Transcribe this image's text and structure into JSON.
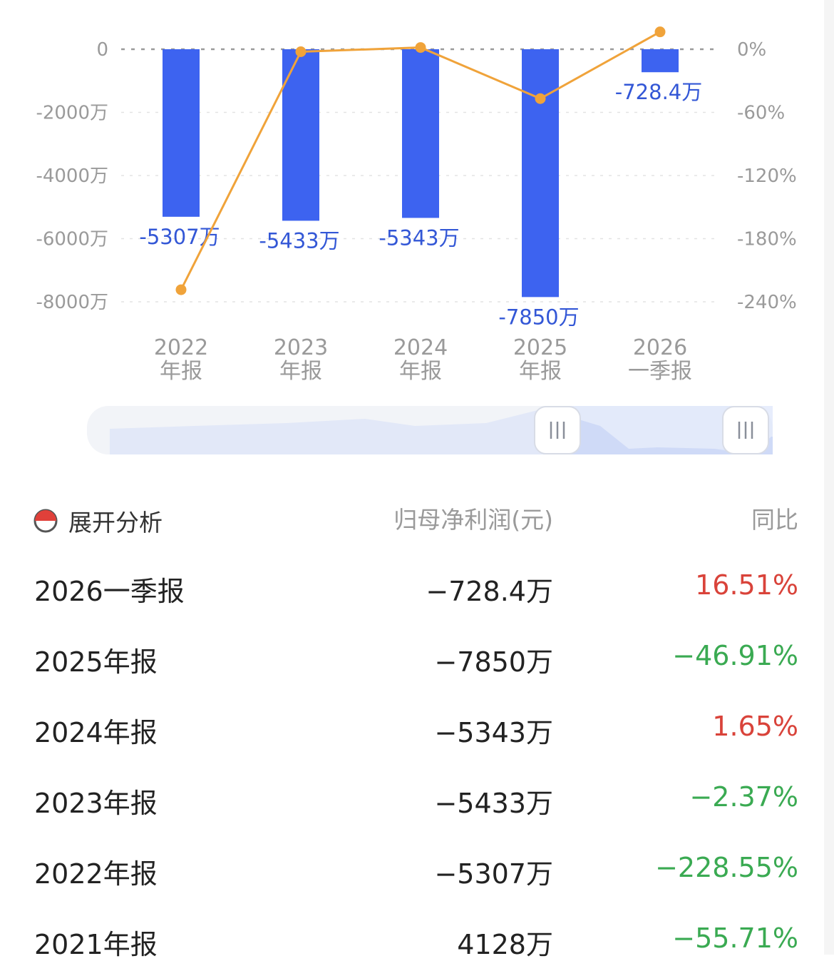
{
  "chart_data": {
    "type": "bar",
    "categories": [
      {
        "year": "2022",
        "period": "年报"
      },
      {
        "year": "2023",
        "period": "年报"
      },
      {
        "year": "2024",
        "period": "年报"
      },
      {
        "year": "2025",
        "period": "年报"
      },
      {
        "year": "2026",
        "period": "一季报"
      }
    ],
    "bar_values": [
      -5307,
      -5433,
      -5343,
      -7850,
      -728.4
    ],
    "bar_labels": [
      "-5307万",
      "-5433万",
      "-5343万",
      "-7850万",
      "-728.4万"
    ],
    "line_values": [
      -228.55,
      -2.37,
      1.65,
      -46.91,
      16.51
    ],
    "left_axis": {
      "ticks": [
        0,
        -2000,
        -4000,
        -6000,
        -8000
      ],
      "tick_labels": [
        "0",
        "-2000万",
        "-4000万",
        "-6000万",
        "-8000万"
      ],
      "range": [
        -8000,
        0
      ]
    },
    "right_axis": {
      "ticks": [
        0,
        -60,
        -120,
        -180,
        -240
      ],
      "tick_labels": [
        "0%",
        "-60%",
        "-120%",
        "-180%",
        "-240%"
      ],
      "range": [
        -240,
        0
      ]
    },
    "zero_line": "dashed",
    "colors": {
      "bar": "#3d63f0",
      "line": "#f0a33a",
      "label": "#3357d6"
    }
  },
  "table": {
    "expand_label": "展开分析",
    "col_value": "归母净利润(元)",
    "col_yoy": "同比",
    "rows": [
      {
        "period": "2026一季报",
        "value": "−728.4万",
        "yoy": "16.51%",
        "sign": "pos"
      },
      {
        "period": "2025年报",
        "value": "−7850万",
        "yoy": "−46.91%",
        "sign": "neg"
      },
      {
        "period": "2024年报",
        "value": "−5343万",
        "yoy": "1.65%",
        "sign": "pos"
      },
      {
        "period": "2023年报",
        "value": "−5433万",
        "yoy": "−2.37%",
        "sign": "neg"
      },
      {
        "period": "2022年报",
        "value": "−5307万",
        "yoy": "−228.55%",
        "sign": "neg"
      },
      {
        "period": "2021年报",
        "value": "4128万",
        "yoy": "−55.71%",
        "sign": "neg"
      }
    ]
  },
  "colors": {
    "positive": "#d9433a",
    "negative": "#3aaa52",
    "icon_red": "#e0403a"
  }
}
